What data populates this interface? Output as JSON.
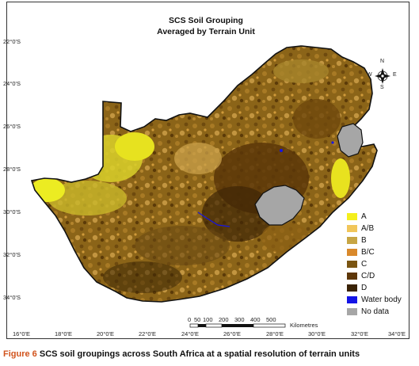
{
  "title": {
    "line1": "SCS Soil Grouping",
    "line2": "Averaged by Terrain Unit"
  },
  "latitude_labels": [
    "22°0'S",
    "24°0'S",
    "26°0'S",
    "28°0'S",
    "30°0'S",
    "32°0'S",
    "34°0'S"
  ],
  "longitude_labels": [
    "16°0'E",
    "18°0'E",
    "20°0'E",
    "22°0'E",
    "24°0'E",
    "26°0'E",
    "28°0'E",
    "30°0'E",
    "32°0'E",
    "34°0'E"
  ],
  "legend": [
    {
      "label": "A",
      "color": "#f4ef1c"
    },
    {
      "label": "A/B",
      "color": "#f1c65a"
    },
    {
      "label": "B",
      "color": "#c7a544"
    },
    {
      "label": "B/C",
      "color": "#d9892b"
    },
    {
      "label": "C",
      "color": "#7a5512"
    },
    {
      "label": "C/D",
      "color": "#5e3708"
    },
    {
      "label": "D",
      "color": "#3a2205"
    },
    {
      "label": "Water body",
      "color": "#1414e6"
    },
    {
      "label": "No data",
      "color": "#a6a6a6"
    }
  ],
  "scale_bar": {
    "ticks": [
      "0",
      "50",
      "100",
      "200",
      "300",
      "400",
      "500"
    ],
    "unit": "Kilometres"
  },
  "compass": {
    "n": "N",
    "s": "S",
    "e": "E",
    "w": "W"
  },
  "caption": {
    "label": "Figure 6",
    "text": "SCS soil groupings across South Africa at a spatial resolution of terrain units"
  }
}
